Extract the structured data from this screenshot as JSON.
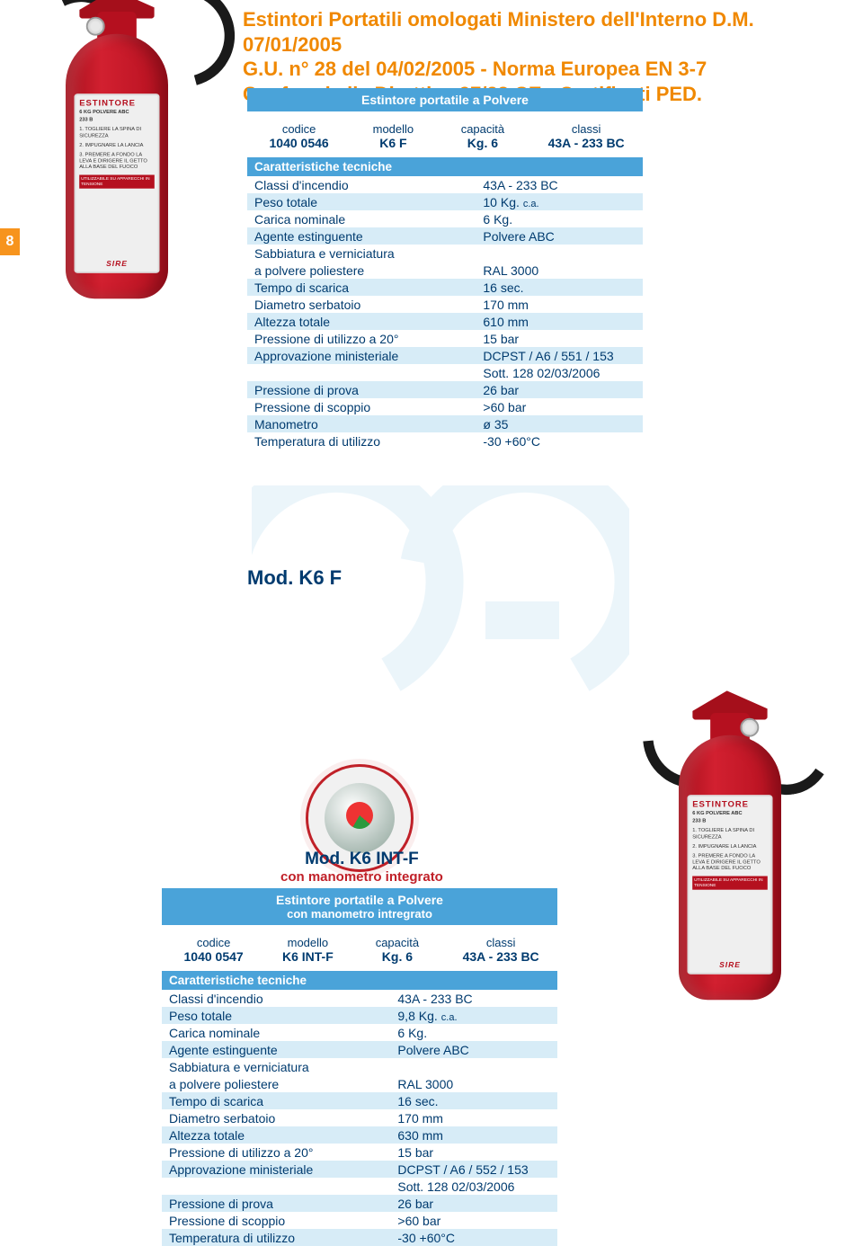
{
  "page_number": "8",
  "title_lines": [
    "Estintori Portatili omologati Ministero dell'Interno D.M. 07/01/2005",
    "G.U. n° 28 del 04/02/2005 - Norma Europea  EN 3-7",
    "Conformi alla Direttiva 97/23 CE - Certificati PED."
  ],
  "model1_label": "Mod. K6 F",
  "model2_label": "Mod. K6 INT-F",
  "model2_sub": "con manometro integrato",
  "brand": "SIRE",
  "ext_label": {
    "title": "ESTINTORE",
    "sub1": "6 KG POLVERE ABC",
    "sub2": "233 B",
    "lines": [
      "1. TOGLIERE LA SPINA DI SICUREZZA",
      "2. IMPUGNARE LA LANCIA",
      "3. PREMERE A FONDO LA LEVA E DIRIGERE IL GETTO ALLA BASE DEL FUOCO"
    ],
    "warn": "UTILIZZABILE SU APPARECCHI IN TENSIONE"
  },
  "tbl1": {
    "title": "Estintore portatile a Polvere",
    "cols": {
      "c1": "codice",
      "c2": "modello",
      "c3": "capacità",
      "c4": "classi"
    },
    "vals": {
      "c1": "1040 0546",
      "c2": "K6 F",
      "c3": "Kg. 6",
      "c4": "43A - 233 BC"
    },
    "char_title": "Caratteristiche tecniche",
    "rows": [
      {
        "k": "Classi d'incendio",
        "v": "43A - 233 BC",
        "alt": false
      },
      {
        "k": "Peso totale",
        "v": "10 Kg.",
        "note": "c.a.",
        "alt": true
      },
      {
        "k": "Carica nominale",
        "v": "6 Kg.",
        "alt": false
      },
      {
        "k": "Agente estinguente",
        "v": "Polvere ABC",
        "alt": true
      },
      {
        "k": "Sabbiatura e verniciatura",
        "v": "",
        "alt": false
      },
      {
        "k": "a polvere poliestere",
        "v": "RAL 3000",
        "alt": false,
        "indent": true
      },
      {
        "k": "Tempo di scarica",
        "v": "16 sec.",
        "alt": true
      },
      {
        "k": "Diametro serbatoio",
        "v": "170 mm",
        "alt": false
      },
      {
        "k": "Altezza totale",
        "v": "610 mm",
        "alt": true
      },
      {
        "k": "Pressione di utilizzo a 20°",
        "v": "15 bar",
        "alt": false
      },
      {
        "k": "Approvazione ministeriale",
        "v": "DCPST / A6 / 551 / 153",
        "alt": true
      },
      {
        "k": "",
        "v": "Sott. 128 02/03/2006",
        "alt": false
      },
      {
        "k": "Pressione di prova",
        "v": "26 bar",
        "alt": true
      },
      {
        "k": "Pressione di scoppio",
        "v": ">60 bar",
        "alt": false
      },
      {
        "k": "Manometro",
        "v": "ø 35",
        "alt": true
      },
      {
        "k": "Temperatura di utilizzo",
        "v": "-30  +60°C",
        "alt": false
      }
    ]
  },
  "tbl2": {
    "title": "Estintore portatile a Polvere",
    "subtitle": "con manometro intregrato",
    "cols": {
      "c1": "codice",
      "c2": "modello",
      "c3": "capacità",
      "c4": "classi"
    },
    "vals": {
      "c1": "1040 0547",
      "c2": "K6 INT-F",
      "c3": "Kg. 6",
      "c4": "43A - 233 BC"
    },
    "char_title": "Caratteristiche tecniche",
    "rows": [
      {
        "k": "Classi d'incendio",
        "v": "43A - 233 BC",
        "alt": false
      },
      {
        "k": "Peso totale",
        "v": "9,8 Kg.",
        "note": "c.a.",
        "alt": true
      },
      {
        "k": "Carica nominale",
        "v": "6 Kg.",
        "alt": false
      },
      {
        "k": "Agente estinguente",
        "v": "Polvere ABC",
        "alt": true
      },
      {
        "k": "Sabbiatura e verniciatura",
        "v": "",
        "alt": false
      },
      {
        "k": "a polvere poliestere",
        "v": "RAL 3000",
        "alt": false,
        "indent": true
      },
      {
        "k": "Tempo di scarica",
        "v": "16 sec.",
        "alt": true
      },
      {
        "k": "Diametro serbatoio",
        "v": "170 mm",
        "alt": false
      },
      {
        "k": "Altezza totale",
        "v": "630 mm",
        "alt": true
      },
      {
        "k": "Pressione di utilizzo a 20°",
        "v": "15 bar",
        "alt": false
      },
      {
        "k": "Approvazione ministeriale",
        "v": "DCPST / A6 / 552 / 153",
        "alt": true
      },
      {
        "k": "",
        "v": "Sott. 128 02/03/2006",
        "alt": false
      },
      {
        "k": "Pressione di prova",
        "v": "26 bar",
        "alt": true
      },
      {
        "k": "Pressione di scoppio",
        "v": ">60 bar",
        "alt": false
      },
      {
        "k": "Temperatura di utilizzo",
        "v": "-30  +60°C",
        "alt": true
      }
    ]
  }
}
